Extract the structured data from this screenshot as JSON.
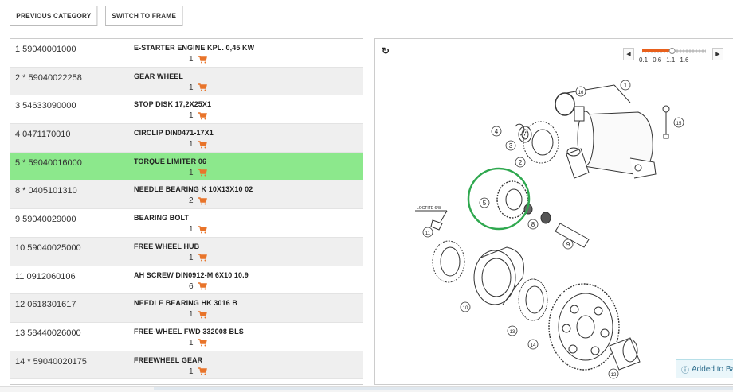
{
  "toolbar": {
    "previous_label": "PREVIOUS CATEGORY",
    "switch_label": "SWITCH TO FRAME"
  },
  "parts": [
    {
      "num": "1   59040001000",
      "desc": "E-STARTER ENGINE KPL. 0,45 KW",
      "qty": "1"
    },
    {
      "num": "2 * 59040022258",
      "desc": "GEAR WHEEL",
      "qty": "1"
    },
    {
      "num": "3   54633090000",
      "desc": "STOP DISK 17,2X25X1",
      "qty": "1"
    },
    {
      "num": "4   0471170010",
      "desc": "CIRCLIP DIN0471-17X1",
      "qty": "1"
    },
    {
      "num": "5 * 59040016000",
      "desc": "TORQUE LIMITER 06",
      "qty": "1"
    },
    {
      "num": "8 * 0405101310",
      "desc": "NEEDLE BEARING K 10X13X10 02",
      "qty": "2"
    },
    {
      "num": "9   59040029000",
      "desc": "BEARING BOLT",
      "qty": "1"
    },
    {
      "num": "10   59040025000",
      "desc": "FREE WHEEL HUB",
      "qty": "1"
    },
    {
      "num": "11   0912060106",
      "desc": "AH SCREW DIN0912-M 6X10 10.9",
      "qty": "6"
    },
    {
      "num": "12   0618301617",
      "desc": "NEEDLE BEARING HK 3016 B",
      "qty": "1"
    },
    {
      "num": "13   58440026000",
      "desc": "FREE-WHEEL FWD 332008 BLS",
      "qty": "1"
    },
    {
      "num": "14 * 59040020175",
      "desc": "FREEWHEEL GEAR",
      "qty": "1"
    }
  ],
  "diagram": {
    "refresh_icon": "refresh-icon",
    "zoom_labels": [
      "0.1",
      "0.6",
      "1.1",
      "1.6"
    ],
    "zoom_level_fraction": 0.47,
    "loctite_label": "LOCTITE 648",
    "callouts": [
      "1",
      "2",
      "3",
      "4",
      "5",
      "8",
      "9",
      "10",
      "11",
      "12",
      "13",
      "14",
      "15",
      "16"
    ],
    "highlight_color": "#2fa84f"
  },
  "toast": {
    "text": "Added to Ba"
  },
  "colors": {
    "active_row": "#8ce88c",
    "cart": "#e8742a",
    "zoom_accent": "#e8601c"
  }
}
